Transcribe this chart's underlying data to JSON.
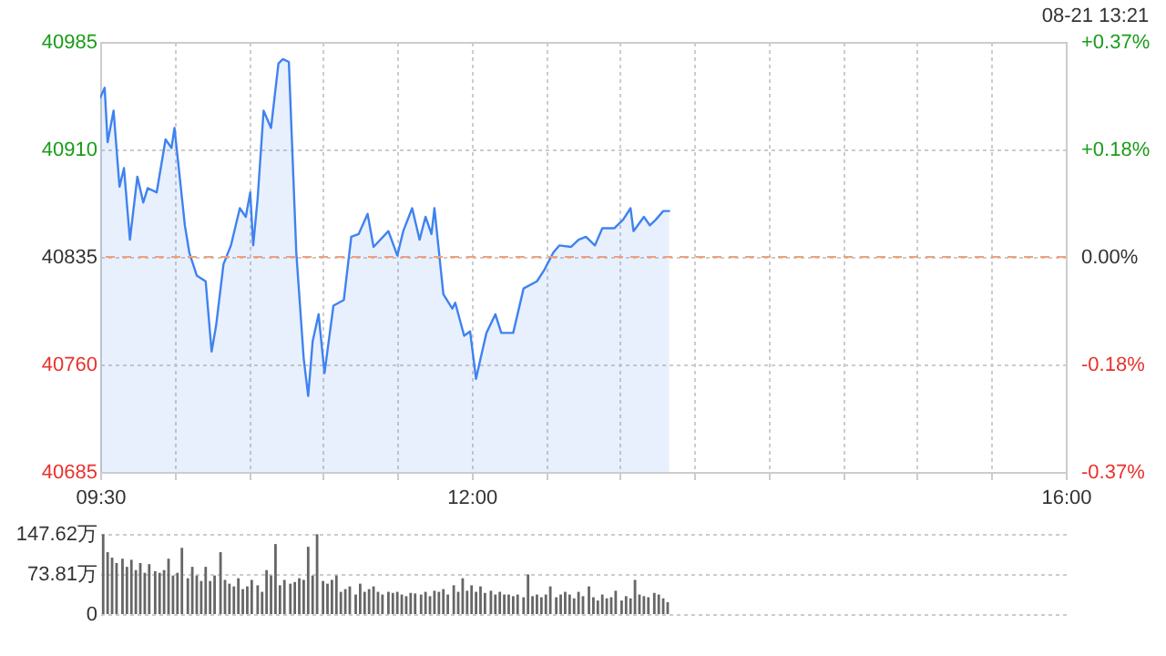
{
  "chart_data": [
    {
      "type": "area",
      "annotations": [
        "08-21 13:21"
      ],
      "x": [
        9.5,
        9.53,
        9.55,
        9.59,
        9.63,
        9.66,
        9.7,
        9.75,
        9.79,
        9.82,
        9.88,
        9.94,
        9.98,
        10.0,
        10.03,
        10.07,
        10.1,
        10.15,
        10.21,
        10.25,
        10.28,
        10.33,
        10.38,
        10.44,
        10.48,
        10.51,
        10.53,
        10.56,
        10.6,
        10.65,
        10.7,
        10.73,
        10.77,
        10.82,
        10.87,
        10.9,
        10.93,
        10.97,
        11.01,
        11.07,
        11.14,
        11.19,
        11.24,
        11.3,
        11.34,
        11.44,
        11.5,
        11.54,
        11.6,
        11.65,
        11.69,
        11.73,
        11.75,
        11.81,
        11.87,
        11.89,
        11.95,
        11.99,
        12.03,
        12.06,
        12.1,
        12.16,
        12.2,
        12.28,
        12.35,
        12.44,
        12.49,
        12.55,
        12.59,
        12.67,
        12.72,
        12.77,
        12.83,
        12.88,
        12.96,
        13.02,
        13.07,
        13.09,
        13.16,
        13.2,
        13.24,
        13.29,
        13.33
      ],
      "series": [
        {
          "color": "#3f82f0",
          "values": [
            40946,
            40953,
            40915,
            40937,
            40884,
            40897,
            40847,
            40891,
            40873,
            40883,
            40880,
            40917,
            40911,
            40925,
            40896,
            40857,
            40838,
            40822,
            40818,
            40769,
            40787,
            40830,
            40843,
            40869,
            40863,
            40880,
            40843,
            40876,
            40937,
            40925,
            40970,
            40973,
            40971,
            40838,
            40764,
            40738,
            40776,
            40795,
            40754,
            40801,
            40805,
            40849,
            40851,
            40865,
            40842,
            40853,
            40836,
            40853,
            40869,
            40847,
            40863,
            40851,
            40869,
            40809,
            40799,
            40803,
            40780,
            40783,
            40750,
            40764,
            40782,
            40795,
            40782,
            40782,
            40813,
            40818,
            40826,
            40838,
            40843,
            40842,
            40847,
            40849,
            40843,
            40855,
            40855,
            40861,
            40869,
            40853,
            40863,
            40857,
            40861,
            40867,
            40867
          ]
        }
      ],
      "xlim": [
        9.5,
        16
      ],
      "xticks": [
        {
          "value": 9.5,
          "label": "09:30"
        },
        {
          "value": 10,
          "label": null
        },
        {
          "value": 10.5,
          "label": null
        },
        {
          "value": 11,
          "label": null
        },
        {
          "value": 11.5,
          "label": null
        },
        {
          "value": 12,
          "label": "12:00"
        },
        {
          "value": 12.5,
          "label": null
        },
        {
          "value": 13,
          "label": null
        },
        {
          "value": 13.5,
          "label": null
        },
        {
          "value": 14,
          "label": null
        },
        {
          "value": 14.5,
          "label": null
        },
        {
          "value": 15,
          "label": null
        },
        {
          "value": 15.5,
          "label": null
        },
        {
          "value": 16,
          "label": "16:00"
        }
      ],
      "ylim": [
        40685,
        40985
      ],
      "yticks": [
        40685,
        40760,
        40835,
        40910,
        40985
      ],
      "y2lim": [
        -0.367,
        0.367
      ],
      "y2ticks": [
        {
          "value": -0.367,
          "label": "-0.37%"
        },
        {
          "value": -0.184,
          "label": "-0.18%"
        },
        {
          "value": 0,
          "label": "0.00%"
        },
        {
          "value": 0.184,
          "label": "+0.18%"
        },
        {
          "value": 0.367,
          "label": "+0.37%"
        }
      ],
      "ref_lines": [
        {
          "axis": "y",
          "value": 40835,
          "color": "#f0a07a",
          "line_style": "dashed"
        }
      ],
      "grid": true
    },
    {
      "type": "bar",
      "x": [
        9.52,
        9.55,
        9.58,
        9.61,
        9.65,
        9.68,
        9.71,
        9.74,
        9.77,
        9.8,
        9.83,
        9.87,
        9.9,
        9.93,
        9.96,
        9.99,
        10.02,
        10.05,
        10.09,
        10.12,
        10.15,
        10.18,
        10.21,
        10.24,
        10.27,
        10.31,
        10.34,
        10.37,
        10.4,
        10.43,
        10.46,
        10.49,
        10.52,
        10.56,
        10.59,
        10.62,
        10.65,
        10.68,
        10.71,
        10.74,
        10.78,
        10.81,
        10.84,
        10.87,
        10.9,
        10.93,
        10.96,
        11.0,
        11.03,
        11.06,
        11.09,
        11.12,
        11.15,
        11.18,
        11.22,
        11.25,
        11.28,
        11.31,
        11.34,
        11.37,
        11.4,
        11.44,
        11.47,
        11.5,
        11.53,
        11.56,
        11.59,
        11.62,
        11.66,
        11.69,
        11.72,
        11.75,
        11.78,
        11.81,
        11.84,
        11.88,
        11.91,
        11.94,
        11.97,
        12.0,
        12.03,
        12.06,
        12.09,
        12.13,
        12.16,
        12.19,
        12.22,
        12.25,
        12.28,
        12.31,
        12.35,
        12.38,
        12.41,
        12.44,
        12.47,
        12.5,
        12.53,
        12.57,
        12.6,
        12.63,
        12.66,
        12.69,
        12.72,
        12.75,
        12.79,
        12.82,
        12.85,
        12.88,
        12.91,
        12.94,
        12.97,
        13.01,
        13.04,
        13.07,
        13.1,
        13.13,
        13.16,
        13.19,
        13.23,
        13.26,
        13.29,
        13.32
      ],
      "values": [
        147,
        114,
        104,
        94,
        102,
        87,
        100,
        81,
        94,
        76,
        92,
        79,
        76,
        81,
        102,
        71,
        76,
        122,
        66,
        87,
        71,
        61,
        87,
        61,
        71,
        114,
        63,
        56,
        51,
        66,
        46,
        51,
        63,
        53,
        41,
        81,
        71,
        129,
        53,
        63,
        56,
        59,
        66,
        63,
        124,
        71,
        147,
        61,
        56,
        63,
        71,
        41,
        46,
        51,
        36,
        56,
        41,
        46,
        51,
        41,
        36,
        41,
        39,
        41,
        36,
        33,
        39,
        38,
        36,
        41,
        33,
        43,
        41,
        46,
        36,
        53,
        41,
        66,
        43,
        53,
        41,
        51,
        39,
        43,
        36,
        41,
        36,
        36,
        33,
        36,
        31,
        73,
        33,
        36,
        31,
        36,
        51,
        31,
        36,
        41,
        36,
        29,
        41,
        33,
        51,
        31,
        25,
        36,
        29,
        31,
        43,
        25,
        33,
        29,
        63,
        36,
        33,
        31,
        39,
        36,
        29,
        22
      ],
      "color": "#666666",
      "xlim": [
        9.5,
        16
      ],
      "ylim": [
        0,
        147.62
      ],
      "yticks": [
        0,
        {
          "value": 73.81,
          "label": "73.81万"
        },
        {
          "value": 147.62,
          "label": "147.62万"
        }
      ],
      "grid": "y",
      "tick_labels": "y"
    }
  ]
}
